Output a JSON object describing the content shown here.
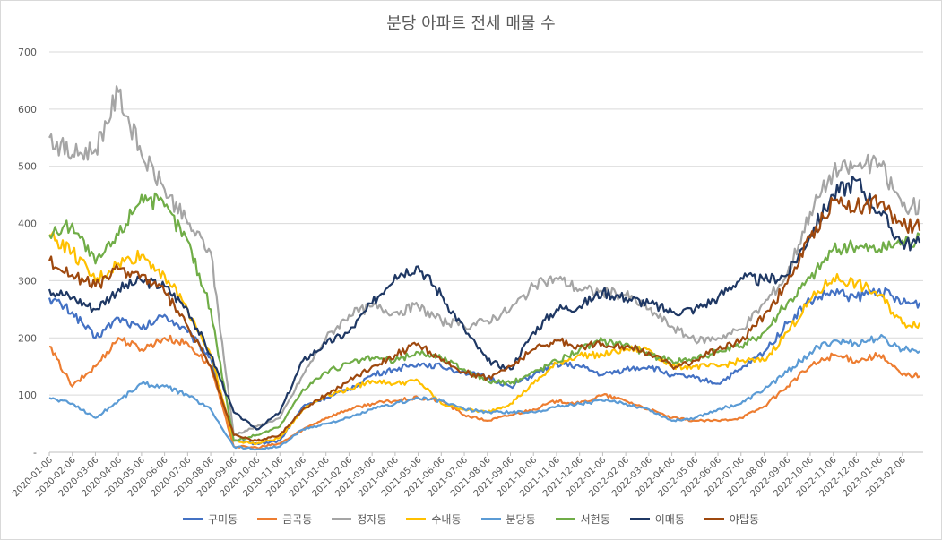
{
  "chart_data": {
    "type": "line",
    "title": "분당 아파트 전세 매물 수",
    "xlabel": "",
    "ylabel": "",
    "ylim": [
      0,
      700
    ],
    "yticks": [
      "-",
      "100",
      "200",
      "300",
      "400",
      "500",
      "600",
      "700"
    ],
    "grid": true,
    "legend_position": "bottom",
    "x": [
      "2020-01-06",
      "2020-02-06",
      "2020-03-06",
      "2020-04-06",
      "2020-05-06",
      "2020-06-06",
      "2020-07-06",
      "2020-08-06",
      "2020-09-06",
      "2020-10-06",
      "2020-11-06",
      "2020-12-06",
      "2021-01-06",
      "2021-02-06",
      "2021-03-06",
      "2021-04-06",
      "2021-05-06",
      "2021-06-06",
      "2021-07-06",
      "2021-08-06",
      "2021-09-06",
      "2021-10-06",
      "2021-11-06",
      "2021-12-06",
      "2022-01-06",
      "2022-02-06",
      "2022-03-06",
      "2022-04-06",
      "2022-05-06",
      "2022-06-06",
      "2022-07-06",
      "2022-08-06",
      "2022-09-06",
      "2022-10-06",
      "2022-11-06",
      "2022-12-06",
      "2023-01-06",
      "2023-02-06"
    ],
    "series": [
      {
        "name": "구미동",
        "color": "#4472c4",
        "values": [
          270,
          245,
          200,
          235,
          215,
          240,
          210,
          165,
          20,
          15,
          20,
          80,
          95,
          110,
          135,
          145,
          155,
          150,
          140,
          130,
          115,
          135,
          155,
          150,
          135,
          145,
          150,
          135,
          130,
          120,
          145,
          175,
          225,
          265,
          280,
          270,
          285,
          260
        ]
      },
      {
        "name": "금곡동",
        "color": "#ed7d31",
        "values": [
          185,
          115,
          150,
          200,
          180,
          200,
          190,
          150,
          10,
          8,
          15,
          40,
          60,
          75,
          85,
          90,
          95,
          90,
          65,
          55,
          65,
          75,
          90,
          85,
          100,
          90,
          75,
          60,
          55,
          55,
          60,
          80,
          115,
          150,
          170,
          160,
          170,
          135
        ]
      },
      {
        "name": "정자동",
        "color": "#a5a5a5",
        "values": [
          550,
          520,
          530,
          630,
          520,
          460,
          400,
          350,
          30,
          45,
          60,
          135,
          200,
          240,
          255,
          245,
          255,
          230,
          220,
          230,
          250,
          290,
          305,
          285,
          280,
          275,
          250,
          220,
          195,
          200,
          215,
          260,
          310,
          420,
          490,
          500,
          505,
          430
        ]
      },
      {
        "name": "수내동",
        "color": "#ffc000",
        "values": [
          380,
          350,
          300,
          330,
          345,
          310,
          250,
          170,
          20,
          15,
          25,
          75,
          100,
          110,
          125,
          120,
          125,
          85,
          75,
          70,
          85,
          120,
          155,
          170,
          170,
          180,
          180,
          150,
          150,
          150,
          160,
          160,
          210,
          265,
          305,
          295,
          275,
          225
        ]
      },
      {
        "name": "분당동",
        "color": "#5b9bd5",
        "values": [
          95,
          85,
          60,
          90,
          120,
          115,
          100,
          75,
          10,
          5,
          10,
          40,
          50,
          60,
          75,
          85,
          95,
          90,
          75,
          70,
          70,
          70,
          80,
          85,
          90,
          85,
          75,
          55,
          60,
          75,
          85,
          110,
          140,
          175,
          195,
          190,
          200,
          180
        ]
      },
      {
        "name": "서현동",
        "color": "#70ad47",
        "values": [
          380,
          400,
          330,
          380,
          450,
          430,
          370,
          250,
          20,
          30,
          45,
          110,
          140,
          155,
          165,
          160,
          175,
          165,
          145,
          125,
          120,
          140,
          160,
          180,
          195,
          190,
          170,
          160,
          165,
          175,
          185,
          210,
          260,
          305,
          355,
          360,
          355,
          370
        ]
      },
      {
        "name": "이매동",
        "color": "#1f3864",
        "values": [
          285,
          270,
          250,
          285,
          300,
          290,
          250,
          170,
          70,
          40,
          70,
          160,
          190,
          210,
          260,
          310,
          325,
          275,
          215,
          160,
          145,
          210,
          250,
          255,
          280,
          270,
          260,
          245,
          250,
          270,
          305,
          300,
          310,
          380,
          450,
          475,
          420,
          365
        ]
      },
      {
        "name": "야탑동",
        "color": "#9e480e",
        "values": [
          335,
          310,
          290,
          320,
          310,
          280,
          220,
          150,
          30,
          20,
          30,
          75,
          100,
          125,
          150,
          170,
          190,
          160,
          140,
          130,
          150,
          180,
          195,
          185,
          190,
          185,
          175,
          150,
          160,
          180,
          195,
          240,
          295,
          375,
          440,
          430,
          435,
          395
        ]
      }
    ]
  }
}
